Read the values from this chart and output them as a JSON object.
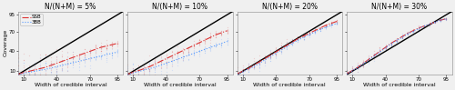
{
  "titles": [
    "N/(N+M) = 5%",
    "N/(N+M) = 10%",
    "N/(N+M) = 20%",
    "N/(N+M) = 30%"
  ],
  "x_ticks": [
    10,
    40,
    70,
    95
  ],
  "y_ticks": [
    10,
    40,
    70,
    95
  ],
  "x_label": "Width of credible interval",
  "y_label": "Coverage",
  "x_range": [
    5,
    100
  ],
  "y_range": [
    5,
    100
  ],
  "alpha_line": [
    5,
    10,
    15,
    20,
    25,
    30,
    35,
    40,
    45,
    50,
    55,
    60,
    65,
    70,
    75,
    80,
    85,
    90,
    95
  ],
  "ssb_coverage_5": [
    5.5,
    8,
    10,
    12,
    14,
    16,
    19,
    22,
    25,
    28,
    31,
    34,
    37,
    40,
    43,
    46,
    48,
    50,
    52
  ],
  "ssb_coverage_10": [
    5.5,
    8.5,
    11,
    14,
    17,
    21,
    25,
    29,
    33,
    37,
    41,
    45,
    49,
    53,
    57,
    61,
    65,
    68,
    71
  ],
  "ssb_coverage_20": [
    6,
    10,
    14,
    19,
    24,
    29,
    34,
    39,
    44,
    49,
    54,
    59,
    63,
    67,
    71,
    75,
    79,
    82,
    85
  ],
  "ssb_coverage_30": [
    6.5,
    11,
    16,
    22,
    28,
    34,
    40,
    46,
    52,
    57,
    62,
    67,
    71,
    75,
    78,
    81,
    84,
    87,
    89
  ],
  "3bb_coverage_5": [
    5,
    7,
    8.5,
    10,
    11.5,
    13,
    15,
    17,
    19,
    21,
    23,
    25,
    27,
    29,
    31,
    33,
    35,
    37,
    39
  ],
  "3bb_coverage_10": [
    5,
    7.5,
    9.5,
    12,
    14,
    16.5,
    19,
    22,
    25,
    28,
    31,
    34,
    37,
    40,
    43,
    46,
    49,
    52,
    55
  ],
  "3bb_coverage_20": [
    5.5,
    9,
    13,
    17,
    22,
    27,
    32,
    37,
    42,
    47,
    52,
    57,
    61,
    65,
    69,
    73,
    76,
    79,
    82
  ],
  "3bb_coverage_30": [
    6,
    10.5,
    15.5,
    21,
    27,
    33,
    39,
    45,
    51,
    56,
    61,
    66,
    70,
    74,
    78,
    81,
    84,
    87,
    89
  ],
  "ssb_color": "#dd3333",
  "3bb_color": "#5599ff",
  "diagonal_color": "black",
  "scatter_alpha": 0.18,
  "legend_labels": [
    "SSB",
    "3BB"
  ],
  "figsize": [
    5.0,
    0.99
  ],
  "dpi": 100,
  "title_fontsize": 5.5,
  "axis_fontsize": 4.5,
  "tick_fontsize": 4.0,
  "legend_fontsize": 4.0,
  "line_width": 0.8,
  "scatter_spreads": [
    14,
    9,
    6,
    4
  ],
  "bg_color": "#f0f0f0"
}
